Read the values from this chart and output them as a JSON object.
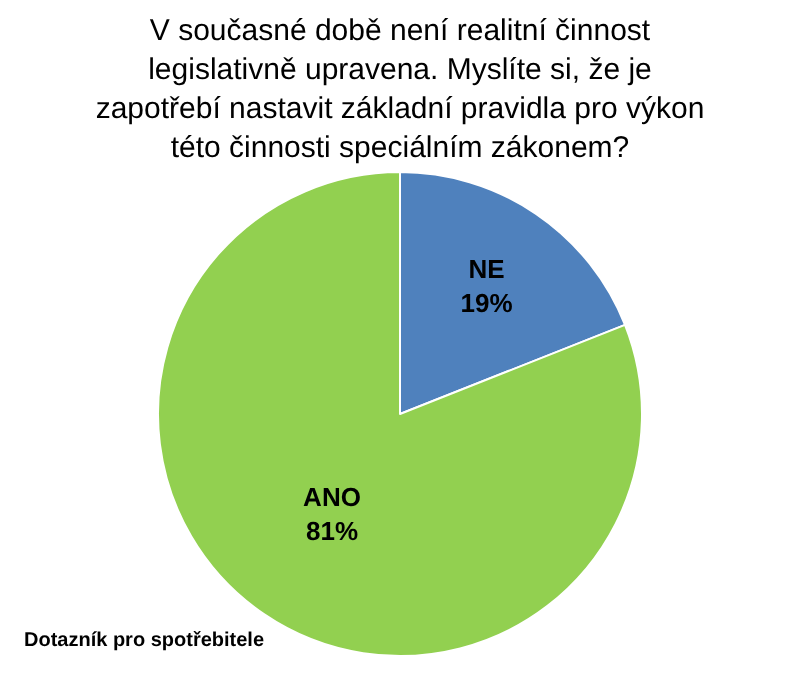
{
  "chart_data": {
    "type": "pie",
    "title": "V současné době není realitní činnost legislativně upravena. Myslíte si, že je zapotřebí nastavit základní pravidla pro výkon této činnosti speciálním zákonem?",
    "categories": [
      "NE",
      "ANO"
    ],
    "values": [
      19,
      81
    ],
    "value_labels": [
      "19%",
      "81%"
    ],
    "colors": [
      "#4f81bd",
      "#92d050"
    ],
    "legend": false,
    "annotations": [
      "Dotazník pro spotřebitele"
    ]
  }
}
